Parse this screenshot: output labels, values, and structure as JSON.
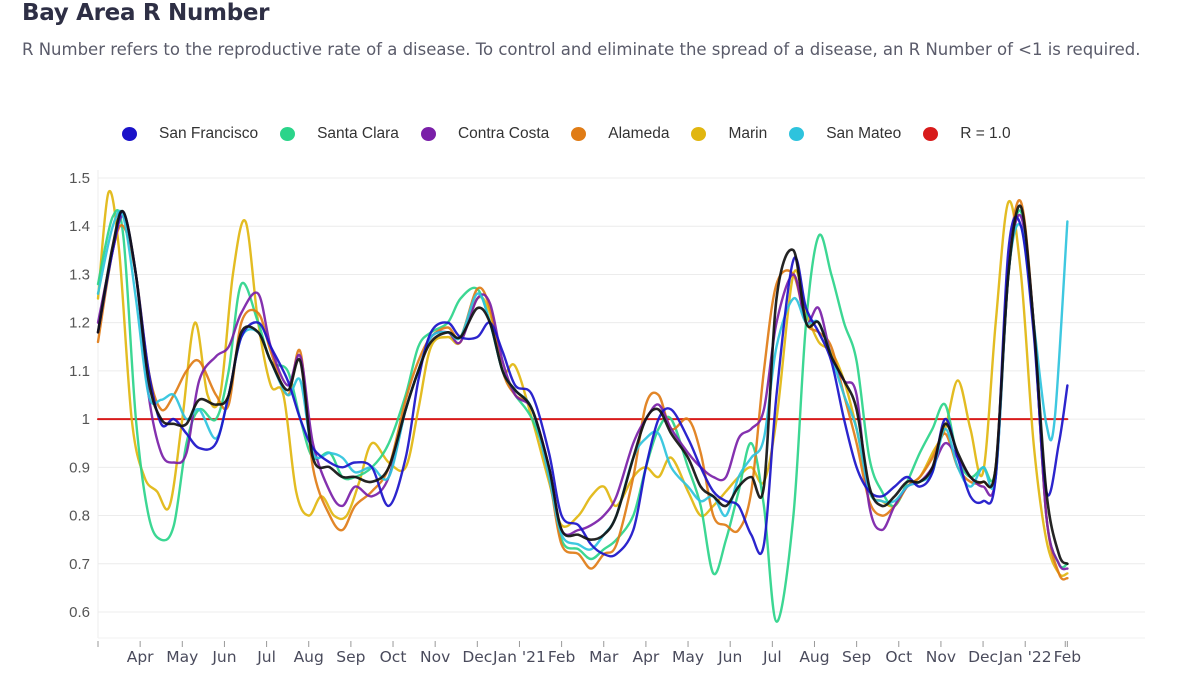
{
  "header": {
    "title": "Bay Area R Number",
    "subtitle": "R Number refers to the reproductive rate of a disease. To control and eliminate the spread of a disease, an R Number of <1 is required."
  },
  "chart_data": {
    "type": "line",
    "title": "Bay Area R Number",
    "subtitle": "R Number refers to the reproductive rate of a disease. To control and eliminate the spread of a disease, an R Number of <1 is required.",
    "xlabel": "",
    "ylabel": "",
    "ylim": [
      0.55,
      1.5
    ],
    "yticks": [
      1.5,
      1.4,
      1.3,
      1.2,
      1.1,
      1,
      0.9,
      0.8,
      0.7,
      0.6
    ],
    "ytick_labels": [
      "1.5",
      "1.4",
      "1.3",
      "1.2",
      "1.1",
      "1",
      "0.9",
      "0.8",
      "0.7",
      "0.6"
    ],
    "grid": true,
    "legend_position": "top",
    "x_range_months": [
      0,
      23.3
    ],
    "x_tick_labels": [
      "Apr",
      "May",
      "Jun",
      "Jul",
      "Aug",
      "Sep",
      "Oct",
      "Nov",
      "Dec",
      "Jan '21",
      "Feb",
      "Mar",
      "Apr",
      "May",
      "Jun",
      "Jul",
      "Aug",
      "Sep",
      "Oct",
      "Nov",
      "Dec",
      "Jan '22",
      "Feb"
    ],
    "x_tick_positions_months": [
      0.5,
      1.5,
      2.5,
      3.5,
      4.5,
      5.5,
      6.5,
      7.5,
      8.5,
      9.5,
      10.5,
      11.5,
      12.5,
      13.5,
      14.5,
      15.5,
      16.5,
      17.5,
      18.5,
      19.5,
      20.5,
      21.5,
      22.5
    ],
    "series": [
      {
        "name": "San Francisco",
        "color": "#1a12c9",
        "x": [
          0,
          0.35,
          0.6,
          0.9,
          1.2,
          1.5,
          1.8,
          2.1,
          2.4,
          2.8,
          3.1,
          3.4,
          3.8,
          4.1,
          4.5,
          4.8,
          5.1,
          5.5,
          5.8,
          6.1,
          6.5,
          6.9,
          7.3,
          7.6,
          7.9,
          8.3,
          8.6,
          9.0,
          9.3,
          9.6,
          9.9,
          10.3,
          10.7,
          11.0,
          11.4,
          11.7,
          12.0,
          12.3,
          12.7,
          13.0,
          13.3,
          13.6,
          14.0,
          14.3,
          14.6,
          14.9,
          15.2,
          15.5,
          15.8,
          16.1,
          16.5,
          16.8,
          17.1,
          17.4,
          17.7,
          18.0,
          18.3,
          18.6,
          18.9,
          19.2,
          19.5,
          19.8,
          20.1,
          20.4,
          20.7,
          21.0,
          21.3,
          21.6,
          21.9,
          22.2,
          22.5,
          22.8,
          23.0
        ],
        "values": [
          1.18,
          1.35,
          1.43,
          1.3,
          1.1,
          0.99,
          1.0,
          0.97,
          0.94,
          0.95,
          1.05,
          1.17,
          1.2,
          1.15,
          1.08,
          1.0,
          0.94,
          0.91,
          0.9,
          0.91,
          0.9,
          0.82,
          0.92,
          1.08,
          1.18,
          1.2,
          1.17,
          1.17,
          1.2,
          1.14,
          1.07,
          1.05,
          0.93,
          0.8,
          0.78,
          0.74,
          0.72,
          0.72,
          0.77,
          0.9,
          1.0,
          1.02,
          0.96,
          0.9,
          0.85,
          0.83,
          0.82,
          0.76,
          0.74,
          1.05,
          1.33,
          1.23,
          1.18,
          1.12,
          1.0,
          0.9,
          0.85,
          0.84,
          0.86,
          0.88,
          0.86,
          0.89,
          1.0,
          0.92,
          0.84,
          0.83,
          0.88,
          1.35,
          1.4,
          1.18,
          0.85,
          0.95,
          1.07
        ]
      },
      {
        "name": "Santa Clara",
        "color": "#2bd48a",
        "x": [
          0,
          0.35,
          0.6,
          0.9,
          1.2,
          1.5,
          1.8,
          2.1,
          2.4,
          2.8,
          3.1,
          3.4,
          3.8,
          4.1,
          4.5,
          4.8,
          5.1,
          5.5,
          5.8,
          6.1,
          6.5,
          6.9,
          7.3,
          7.6,
          7.9,
          8.3,
          8.6,
          9.0,
          9.3,
          9.6,
          9.9,
          10.3,
          10.7,
          11.0,
          11.4,
          11.7,
          12.0,
          12.3,
          12.7,
          13.0,
          13.3,
          13.6,
          14.0,
          14.3,
          14.6,
          14.9,
          15.2,
          15.5,
          15.8,
          16.1,
          16.5,
          16.8,
          17.1,
          17.4,
          17.7,
          18.0,
          18.3,
          18.6,
          18.9,
          19.2,
          19.5,
          19.8,
          20.1,
          20.4,
          20.7,
          21.0,
          21.3,
          21.6,
          21.9,
          22.2,
          22.5,
          22.8,
          23.0
        ],
        "values": [
          1.28,
          1.42,
          1.38,
          1.0,
          0.8,
          0.75,
          0.78,
          0.95,
          1.02,
          1.0,
          1.1,
          1.28,
          1.2,
          1.12,
          1.1,
          1.0,
          0.92,
          0.93,
          0.88,
          0.88,
          0.9,
          0.95,
          1.05,
          1.15,
          1.18,
          1.2,
          1.25,
          1.27,
          1.2,
          1.1,
          1.05,
          1.0,
          0.9,
          0.75,
          0.73,
          0.71,
          0.73,
          0.75,
          0.8,
          0.9,
          0.98,
          1.0,
          0.9,
          0.82,
          0.68,
          0.75,
          0.85,
          0.95,
          0.82,
          0.58,
          0.8,
          1.2,
          1.38,
          1.3,
          1.2,
          1.12,
          0.92,
          0.85,
          0.82,
          0.87,
          0.93,
          0.98,
          1.03,
          0.92,
          0.88,
          0.9,
          0.9,
          1.3,
          1.43,
          1.2,
          0.8,
          0.7,
          0.7
        ]
      },
      {
        "name": "Contra Costa",
        "color": "#7a1fa8",
        "x": [
          0,
          0.35,
          0.6,
          0.9,
          1.2,
          1.5,
          1.8,
          2.1,
          2.4,
          2.8,
          3.1,
          3.4,
          3.8,
          4.1,
          4.5,
          4.8,
          5.1,
          5.5,
          5.8,
          6.1,
          6.5,
          6.9,
          7.3,
          7.6,
          7.9,
          8.3,
          8.6,
          9.0,
          9.3,
          9.6,
          9.9,
          10.3,
          10.7,
          11.0,
          11.4,
          11.7,
          12.0,
          12.3,
          12.7,
          13.0,
          13.3,
          13.6,
          14.0,
          14.3,
          14.6,
          14.9,
          15.2,
          15.5,
          15.8,
          16.1,
          16.5,
          16.8,
          17.1,
          17.4,
          17.7,
          18.0,
          18.3,
          18.6,
          18.9,
          19.2,
          19.5,
          19.8,
          20.1,
          20.4,
          20.7,
          21.0,
          21.3,
          21.6,
          21.9,
          22.2,
          22.5,
          22.8,
          23.0
        ],
        "values": [
          1.2,
          1.35,
          1.42,
          1.3,
          1.05,
          0.93,
          0.91,
          0.93,
          1.08,
          1.13,
          1.15,
          1.22,
          1.26,
          1.15,
          1.07,
          1.13,
          0.95,
          0.85,
          0.82,
          0.86,
          0.84,
          0.88,
          1.02,
          1.1,
          1.17,
          1.18,
          1.16,
          1.25,
          1.24,
          1.12,
          1.05,
          1.02,
          0.9,
          0.77,
          0.77,
          0.78,
          0.8,
          0.84,
          0.95,
          1.0,
          1.03,
          0.98,
          0.93,
          0.9,
          0.88,
          0.88,
          0.96,
          0.98,
          1.02,
          1.2,
          1.3,
          1.2,
          1.23,
          1.13,
          1.08,
          1.05,
          0.82,
          0.77,
          0.82,
          0.86,
          0.87,
          0.9,
          0.95,
          0.92,
          0.88,
          0.86,
          0.88,
          1.3,
          1.42,
          1.2,
          0.8,
          0.7,
          0.69
        ]
      },
      {
        "name": "Alameda",
        "color": "#e07c16",
        "x": [
          0,
          0.35,
          0.6,
          0.9,
          1.2,
          1.5,
          1.8,
          2.1,
          2.4,
          2.8,
          3.1,
          3.4,
          3.8,
          4.1,
          4.5,
          4.8,
          5.1,
          5.5,
          5.8,
          6.1,
          6.5,
          6.9,
          7.3,
          7.6,
          7.9,
          8.3,
          8.6,
          9.0,
          9.3,
          9.6,
          9.9,
          10.3,
          10.7,
          11.0,
          11.4,
          11.7,
          12.0,
          12.3,
          12.7,
          13.0,
          13.3,
          13.6,
          14.0,
          14.3,
          14.6,
          14.9,
          15.2,
          15.5,
          15.8,
          16.1,
          16.5,
          16.8,
          17.1,
          17.4,
          17.7,
          18.0,
          18.3,
          18.6,
          18.9,
          19.2,
          19.5,
          19.8,
          20.1,
          20.4,
          20.7,
          21.0,
          21.3,
          21.6,
          21.9,
          22.2,
          22.5,
          22.8,
          23.0
        ],
        "values": [
          1.16,
          1.35,
          1.4,
          1.3,
          1.1,
          1.02,
          1.05,
          1.1,
          1.12,
          1.05,
          1.03,
          1.2,
          1.22,
          1.14,
          1.05,
          1.14,
          0.9,
          0.8,
          0.77,
          0.82,
          0.85,
          0.9,
          1.04,
          1.12,
          1.17,
          1.19,
          1.17,
          1.27,
          1.23,
          1.1,
          1.05,
          1.02,
          0.88,
          0.74,
          0.72,
          0.69,
          0.72,
          0.74,
          0.88,
          1.03,
          1.05,
          0.98,
          1.0,
          0.93,
          0.8,
          0.78,
          0.77,
          0.85,
          1.1,
          1.28,
          1.3,
          1.2,
          1.18,
          1.15,
          1.05,
          0.95,
          0.83,
          0.8,
          0.82,
          0.86,
          0.88,
          0.92,
          0.97,
          0.9,
          0.87,
          0.87,
          0.9,
          1.32,
          1.45,
          1.2,
          0.8,
          0.68,
          0.67
        ]
      },
      {
        "name": "Marin",
        "color": "#e1b60f",
        "x": [
          0,
          0.25,
          0.5,
          0.8,
          1.1,
          1.4,
          1.7,
          2.0,
          2.3,
          2.6,
          2.9,
          3.2,
          3.5,
          3.8,
          4.1,
          4.4,
          4.7,
          5.0,
          5.3,
          5.6,
          5.9,
          6.2,
          6.5,
          6.9,
          7.3,
          7.6,
          7.9,
          8.3,
          8.6,
          9.0,
          9.3,
          9.6,
          9.9,
          10.3,
          10.7,
          11.0,
          11.4,
          11.7,
          12.0,
          12.3,
          12.7,
          13.0,
          13.3,
          13.6,
          14.0,
          14.3,
          14.6,
          14.9,
          15.2,
          15.5,
          15.8,
          16.1,
          16.5,
          16.8,
          17.1,
          17.4,
          17.7,
          18.0,
          18.3,
          18.6,
          18.9,
          19.2,
          19.5,
          19.8,
          20.1,
          20.4,
          20.7,
          21.0,
          21.3,
          21.6,
          21.9,
          22.2,
          22.5,
          22.8,
          23.0
        ],
        "values": [
          1.25,
          1.47,
          1.35,
          1.0,
          0.88,
          0.85,
          0.82,
          1.0,
          1.2,
          1.05,
          1.05,
          1.3,
          1.41,
          1.2,
          1.07,
          1.05,
          0.85,
          0.8,
          0.84,
          0.8,
          0.8,
          0.87,
          0.95,
          0.91,
          0.9,
          1.02,
          1.15,
          1.17,
          1.16,
          1.25,
          1.22,
          1.1,
          1.11,
          1.0,
          0.87,
          0.78,
          0.8,
          0.84,
          0.86,
          0.82,
          0.88,
          0.9,
          0.88,
          0.92,
          0.85,
          0.8,
          0.82,
          0.85,
          0.88,
          0.9,
          0.87,
          1.0,
          1.3,
          1.22,
          1.16,
          1.14,
          1.08,
          0.98,
          0.85,
          0.83,
          0.82,
          0.86,
          0.88,
          0.93,
          0.98,
          1.08,
          0.98,
          0.89,
          1.2,
          1.45,
          1.3,
          0.95,
          0.75,
          0.68,
          0.68
        ]
      },
      {
        "name": "San Mateo",
        "color": "#2ec3dd",
        "x": [
          0,
          0.35,
          0.6,
          0.9,
          1.2,
          1.5,
          1.8,
          2.1,
          2.4,
          2.8,
          3.1,
          3.4,
          3.8,
          4.1,
          4.5,
          4.8,
          5.1,
          5.5,
          5.8,
          6.1,
          6.5,
          6.9,
          7.3,
          7.6,
          7.9,
          8.3,
          8.6,
          9.0,
          9.3,
          9.6,
          9.9,
          10.3,
          10.7,
          11.0,
          11.4,
          11.7,
          12.0,
          12.3,
          12.7,
          13.0,
          13.3,
          13.6,
          14.0,
          14.3,
          14.6,
          14.9,
          15.2,
          15.5,
          15.8,
          16.1,
          16.5,
          16.8,
          17.1,
          17.4,
          17.7,
          18.0,
          18.3,
          18.6,
          18.9,
          19.2,
          19.5,
          19.8,
          20.1,
          20.4,
          20.7,
          21.0,
          21.3,
          21.6,
          21.9,
          22.2,
          22.5,
          22.7,
          23.0
        ],
        "values": [
          1.26,
          1.4,
          1.42,
          1.25,
          1.05,
          1.04,
          1.05,
          1.0,
          1.02,
          0.96,
          1.05,
          1.17,
          1.18,
          1.12,
          1.05,
          1.08,
          0.93,
          0.93,
          0.92,
          0.89,
          0.9,
          0.88,
          1.02,
          1.1,
          1.17,
          1.18,
          1.17,
          1.26,
          1.2,
          1.1,
          1.06,
          1.02,
          0.88,
          0.76,
          0.74,
          0.73,
          0.76,
          0.8,
          0.92,
          0.96,
          0.97,
          0.9,
          0.86,
          0.83,
          0.84,
          0.8,
          0.88,
          0.92,
          0.96,
          1.15,
          1.25,
          1.2,
          1.2,
          1.13,
          1.05,
          0.98,
          0.85,
          0.83,
          0.83,
          0.86,
          0.87,
          0.89,
          0.98,
          0.9,
          0.86,
          0.9,
          0.88,
          1.3,
          1.4,
          1.2,
          0.99,
          1.0,
          1.41
        ]
      },
      {
        "name": "Bay Area (aggregate)",
        "color": "#111111",
        "legend": false,
        "x": [
          0,
          0.35,
          0.6,
          0.9,
          1.2,
          1.5,
          1.8,
          2.1,
          2.4,
          2.8,
          3.1,
          3.4,
          3.8,
          4.1,
          4.5,
          4.8,
          5.1,
          5.5,
          5.8,
          6.1,
          6.5,
          6.9,
          7.3,
          7.6,
          7.9,
          8.3,
          8.6,
          9.0,
          9.3,
          9.6,
          9.9,
          10.3,
          10.7,
          11.0,
          11.4,
          11.7,
          12.0,
          12.3,
          12.7,
          13.0,
          13.3,
          13.6,
          14.0,
          14.3,
          14.6,
          14.9,
          15.2,
          15.5,
          15.8,
          16.1,
          16.5,
          16.8,
          17.1,
          17.4,
          17.7,
          18.0,
          18.3,
          18.6,
          18.9,
          19.2,
          19.5,
          19.8,
          20.1,
          20.4,
          20.7,
          21.0,
          21.3,
          21.6,
          21.9,
          22.2,
          22.5,
          22.8,
          23.0
        ],
        "values": [
          1.18,
          1.36,
          1.43,
          1.3,
          1.08,
          1.0,
          0.99,
          0.99,
          1.04,
          1.03,
          1.05,
          1.18,
          1.18,
          1.12,
          1.06,
          1.12,
          0.92,
          0.9,
          0.88,
          0.88,
          0.87,
          0.9,
          1.02,
          1.1,
          1.16,
          1.18,
          1.17,
          1.23,
          1.2,
          1.1,
          1.06,
          1.02,
          0.9,
          0.77,
          0.76,
          0.75,
          0.76,
          0.8,
          0.92,
          1.0,
          1.02,
          0.97,
          0.92,
          0.86,
          0.84,
          0.82,
          0.86,
          0.88,
          0.86,
          1.25,
          1.35,
          1.2,
          1.2,
          1.13,
          1.08,
          1.02,
          0.86,
          0.82,
          0.84,
          0.87,
          0.87,
          0.9,
          0.99,
          0.93,
          0.88,
          0.87,
          0.9,
          1.3,
          1.44,
          1.2,
          0.85,
          0.72,
          0.7
        ]
      },
      {
        "name": "R = 1.0",
        "color": "#d81b1b",
        "x": [
          0,
          23.0
        ],
        "values": [
          1.0,
          1.0
        ]
      }
    ]
  },
  "legend": {
    "items": [
      {
        "label": "San Francisco",
        "color": "#1a12c9"
      },
      {
        "label": "Santa Clara",
        "color": "#2bd48a"
      },
      {
        "label": "Contra Costa",
        "color": "#7a1fa8"
      },
      {
        "label": "Alameda",
        "color": "#e07c16"
      },
      {
        "label": "Marin",
        "color": "#e1b60f"
      },
      {
        "label": "San Mateo",
        "color": "#2ec3dd"
      },
      {
        "label": "R = 1.0",
        "color": "#d81b1b"
      }
    ]
  }
}
